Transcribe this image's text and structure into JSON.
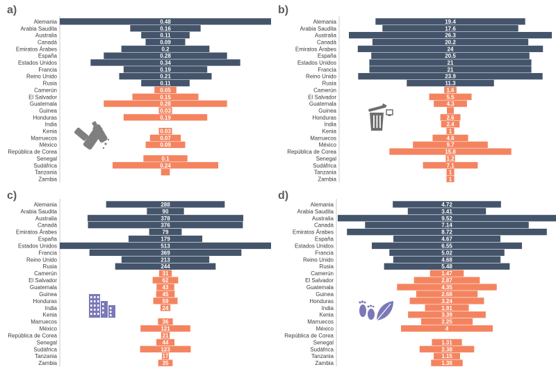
{
  "colors": {
    "high_income": "#44546a",
    "low_income": "#f4845f",
    "label_text": "#3a3a3a",
    "value_text": "#ffffff",
    "icon": "#7f7f7f",
    "icon_buildings": "#7b78b8"
  },
  "chart_data": [
    {
      "panel": "a)",
      "type": "bar",
      "orientation": "horizontal-centered",
      "icon": "plastic-bottles-icon",
      "categories": [
        "Alemania",
        "Arabia Saudita",
        "Australia",
        "Canadá",
        "Emiratos Árabes",
        "España",
        "Estados Unidos",
        "Francia",
        "Reino Unido",
        "Rusia",
        "Camerún",
        "El Salvador",
        "Guatemala",
        "Guinea",
        "Honduras",
        "India",
        "Kenia",
        "Marruecos",
        "México",
        "República de Corea",
        "Senegal",
        "Sudáfrica",
        "Tanzania",
        "Zambia"
      ],
      "values": [
        0.48,
        0.16,
        0.11,
        0.09,
        0.2,
        0.28,
        0.34,
        0.19,
        0.21,
        0.11,
        0.05,
        0.15,
        0.28,
        0.03,
        0.19,
        null,
        0.03,
        0.07,
        0.09,
        null,
        0.1,
        0.24,
        0.02,
        null
      ],
      "labels": [
        "0.48",
        "0.16",
        "0.11",
        "0.09",
        "0.2",
        "0.28",
        "0.34",
        "0.19",
        "0.21",
        "0.11",
        "0.05",
        "0.15",
        "0.28",
        "0.03",
        "0.19",
        "",
        "0.03",
        "0.07",
        "0.09",
        "",
        "0.1",
        "0.24",
        "",
        ""
      ]
    },
    {
      "panel": "b)",
      "type": "bar",
      "orientation": "horizontal-centered",
      "icon": "trash-bin-icon",
      "categories": [
        "Alemania",
        "Arabia Saudita",
        "Australia",
        "Canadá",
        "Emiratos Árabes",
        "España",
        "Estados Unidos",
        "Francia",
        "Reino Unido",
        "Rusia",
        "Camerún",
        "El Salvador",
        "Guatemala",
        "Guinea",
        "Honduras",
        "India",
        "Kenia",
        "Marruecos",
        "México",
        "República de Corea",
        "Senegal",
        "Sudáfrica",
        "Tanzania",
        "Zambia"
      ],
      "values": [
        19.4,
        17.6,
        26.3,
        20.2,
        24,
        20.5,
        21,
        21,
        23.9,
        11.3,
        1.6,
        5.5,
        4.3,
        0.9,
        2.6,
        2.4,
        1,
        4.6,
        9.7,
        15.8,
        1.2,
        7.1,
        1,
        1
      ],
      "labels": [
        "19.4",
        "17.6",
        "26.3",
        "20.2",
        "24",
        "20.5",
        "21",
        "21",
        "23.9",
        "11.3",
        "1.6",
        "5.5",
        "4.3",
        "",
        "2.6",
        "2.4",
        "1",
        "4.6",
        "9.7",
        "15.8",
        "1.2",
        "7.1",
        "1",
        "1"
      ]
    },
    {
      "panel": "c)",
      "type": "bar",
      "orientation": "horizontal-centered",
      "icon": "buildings-icon",
      "categories": [
        "Alemania",
        "Arabia Saudita",
        "Australia",
        "Canadá",
        "Emiratos Árabes",
        "España",
        "Estados Unidos",
        "Francia",
        "Reino Unido",
        "Rusia",
        "Camerún",
        "El Salvador",
        "Guatemala",
        "Guinea",
        "Honduras",
        "India",
        "Kenia",
        "Marruecos",
        "México",
        "República de Corea",
        "Senegal",
        "Sudáfrica",
        "Tanzania",
        "Zambia"
      ],
      "values": [
        288,
        90,
        378,
        376,
        79,
        179,
        513,
        369,
        213,
        244,
        31,
        62,
        43,
        45,
        59,
        24,
        null,
        36,
        121,
        21,
        44,
        123,
        17,
        35
      ],
      "labels": [
        "288",
        "90",
        "378",
        "376",
        "79",
        "179",
        "513",
        "369",
        "213",
        "244",
        "31",
        "62",
        "43",
        "45",
        "59",
        "24",
        "",
        "36",
        "121",
        "21",
        "44",
        "123",
        "17",
        "35"
      ]
    },
    {
      "panel": "d)",
      "type": "bar",
      "orientation": "horizontal-centered",
      "icon": "footprint-leaf-icon",
      "categories": [
        "Alemania",
        "Arabia Saudita",
        "Australia",
        "Canadá",
        "Emiratos Árabes",
        "España",
        "Estados Unidos",
        "Francia",
        "Reino Unido",
        "Rusia",
        "Camerún",
        "El Salvador",
        "Guatemala",
        "Guinea",
        "Honduras",
        "India",
        "Kenia",
        "Marruecos",
        "México",
        "República de Corea",
        "Senegal",
        "Sudáfrica",
        "Tanzania",
        "Zambia"
      ],
      "values": [
        4.72,
        3.41,
        9.52,
        7.14,
        8.72,
        4.67,
        6.55,
        5.02,
        4.68,
        5.48,
        1.47,
        2.87,
        4.35,
        2.68,
        3.24,
        1.91,
        3.39,
        2.25,
        4,
        null,
        1.31,
        2.38,
        1.15,
        1.38
      ],
      "labels": [
        "4.72",
        "3.41",
        "9.52",
        "7.14",
        "8.72",
        "4.67",
        "6.55",
        "5.02",
        "4.68",
        "5.48",
        "1.47",
        "2.87",
        "4.35",
        "2.68",
        "3.24",
        "1.91",
        "3.39",
        "2.25",
        "4",
        "",
        "1.31",
        "2.38",
        "1.15",
        "1.38"
      ]
    }
  ]
}
